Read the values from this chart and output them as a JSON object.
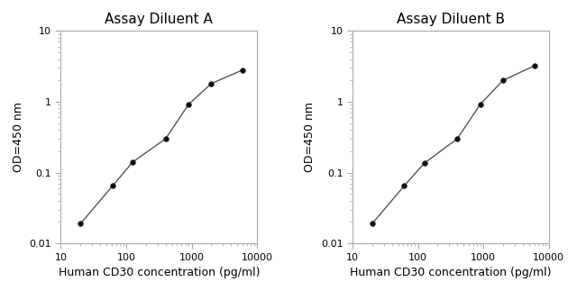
{
  "title_A": "Assay Diluent A",
  "title_B": "Assay Diluent B",
  "xlabel": "Human CD30 concentration (pg/ml)",
  "ylabel": "OD=450 nm",
  "x_A": [
    20,
    62,
    125,
    400,
    900,
    2000,
    6000
  ],
  "y_A": [
    0.019,
    0.065,
    0.14,
    0.3,
    0.92,
    1.8,
    2.8
  ],
  "x_B": [
    20,
    62,
    125,
    400,
    900,
    2000,
    6000
  ],
  "y_B": [
    0.019,
    0.065,
    0.135,
    0.3,
    0.92,
    2.0,
    3.2
  ],
  "xlim": [
    10,
    10000
  ],
  "ylim": [
    0.01,
    10
  ],
  "line_color": "#555555",
  "marker_color": "#111111",
  "marker_size": 4,
  "title_fontsize": 11,
  "label_fontsize": 9,
  "tick_fontsize": 8,
  "background_color": "#ffffff",
  "spine_color": "#aaaaaa",
  "figsize": [
    6.4,
    3.23
  ],
  "dpi": 100
}
